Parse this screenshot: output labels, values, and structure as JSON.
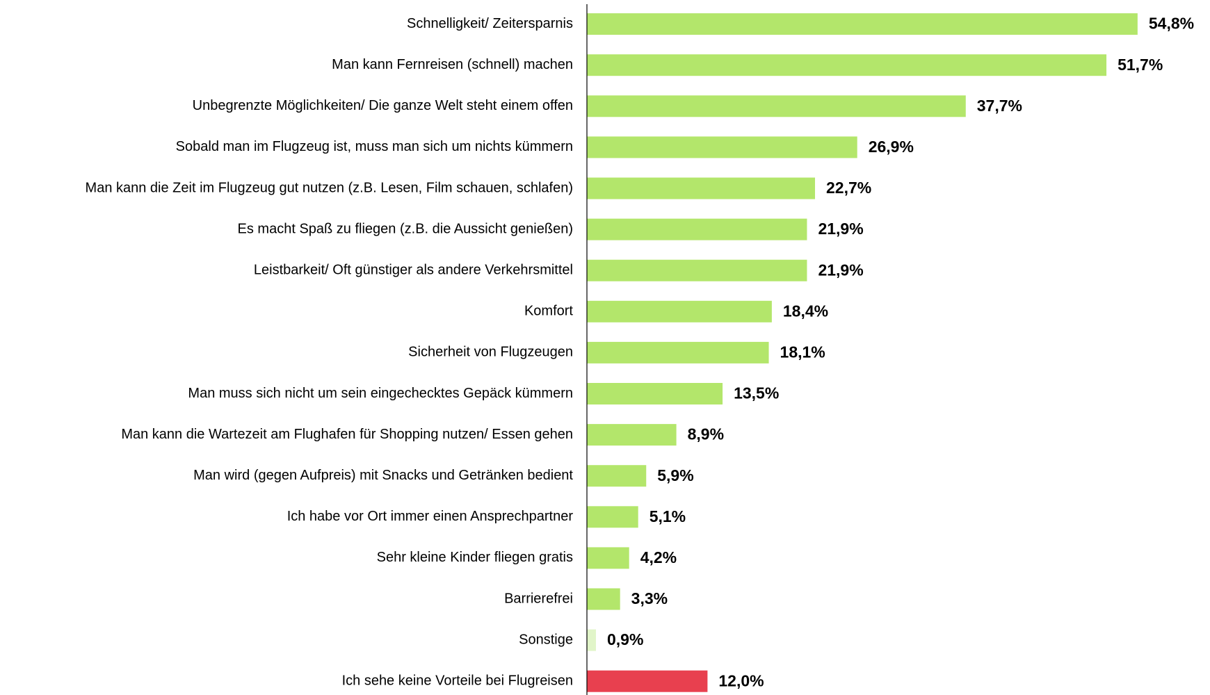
{
  "chart_data": {
    "type": "barh",
    "categories": [
      "Schnelligkeit/ Zeitersparnis",
      "Man kann Fernreisen (schnell) machen",
      "Unbegrenzte Möglichkeiten/ Die ganze Welt steht einem offen",
      "Sobald man im Flugzeug ist, muss man sich um nichts kümmern",
      "Man kann die Zeit im Flugzeug gut nutzen (z.B. Lesen, Film schauen, schlafen)",
      "Es macht Spaß zu fliegen (z.B. die Aussicht genießen)",
      "Leistbarkeit/ Oft günstiger als andere Verkehrsmittel",
      "Komfort",
      "Sicherheit von Flugzeugen",
      "Man muss sich nicht um sein eingechecktes Gepäck kümmern",
      "Man kann die Wartezeit am Flughafen für Shopping nutzen/ Essen gehen",
      "Man wird (gegen Aufpreis) mit Snacks und Getränken bedient",
      "Ich habe vor Ort immer einen Ansprechpartner",
      "Sehr kleine Kinder fliegen gratis",
      "Barrierefrei",
      "Sonstige",
      "Ich sehe keine Vorteile bei Flugreisen"
    ],
    "values": [
      54.8,
      51.7,
      37.7,
      26.9,
      22.7,
      21.9,
      21.9,
      18.4,
      18.1,
      13.5,
      8.9,
      5.9,
      5.1,
      4.2,
      3.3,
      0.9,
      12.0
    ],
    "value_labels": [
      "54,8%",
      "51,7%",
      "37,7%",
      "26,9%",
      "22,7%",
      "21,9%",
      "21,9%",
      "18,4%",
      "18,1%",
      "13,5%",
      "8,9%",
      "5,9%",
      "5,1%",
      "4,2%",
      "3,3%",
      "0,9%",
      "12,0%"
    ],
    "colors": [
      "#b3e66b",
      "#b3e66b",
      "#b3e66b",
      "#b3e66b",
      "#b3e66b",
      "#b3e66b",
      "#b3e66b",
      "#b3e66b",
      "#b3e66b",
      "#b3e66b",
      "#b3e66b",
      "#b3e66b",
      "#b3e66b",
      "#b3e66b",
      "#b3e66b",
      "#e1f5c9",
      "#e8404f"
    ],
    "xlim": [
      0,
      60
    ]
  }
}
